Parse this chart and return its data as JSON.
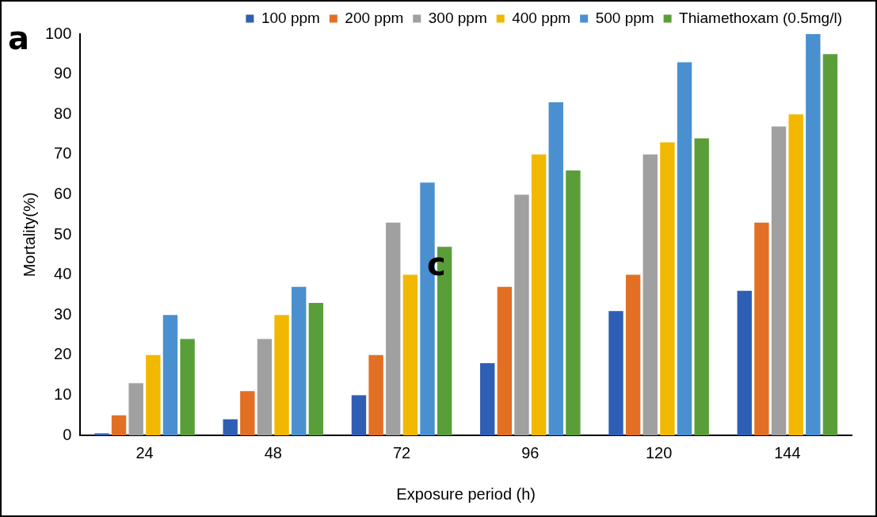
{
  "chart_data": {
    "type": "bar",
    "xlabel": "Exposure period (h)",
    "ylabel": "Mortality(%)",
    "categories": [
      "24",
      "48",
      "72",
      "96",
      "120",
      "144"
    ],
    "series": [
      {
        "name": "100 ppm",
        "color": "#2e5fb5",
        "values": [
          0.5,
          4,
          10,
          18,
          31,
          36
        ]
      },
      {
        "name": "200 ppm",
        "color": "#e36f24",
        "values": [
          5,
          11,
          20,
          37,
          40,
          53
        ]
      },
      {
        "name": "300 ppm",
        "color": "#a0a0a0",
        "values": [
          13,
          24,
          53,
          60,
          70,
          77
        ]
      },
      {
        "name": "400 ppm",
        "color": "#f2b800",
        "values": [
          20,
          30,
          40,
          70,
          73,
          80
        ]
      },
      {
        "name": "500 ppm",
        "color": "#4a90d0",
        "values": [
          30,
          37,
          63,
          83,
          93,
          100
        ]
      },
      {
        "name": "Thiamethoxam (0.5mg/l)",
        "color": "#5a9e3a",
        "values": [
          24,
          33,
          47,
          66,
          74,
          95
        ]
      }
    ],
    "ylim": [
      0,
      100
    ],
    "yticks": [
      0,
      10,
      20,
      30,
      40,
      50,
      60,
      70,
      80,
      90,
      100
    ],
    "grid": false,
    "legend": "top",
    "annotations": [
      "a",
      {
        "text": "c",
        "x": "72",
        "y": 42
      }
    ]
  }
}
